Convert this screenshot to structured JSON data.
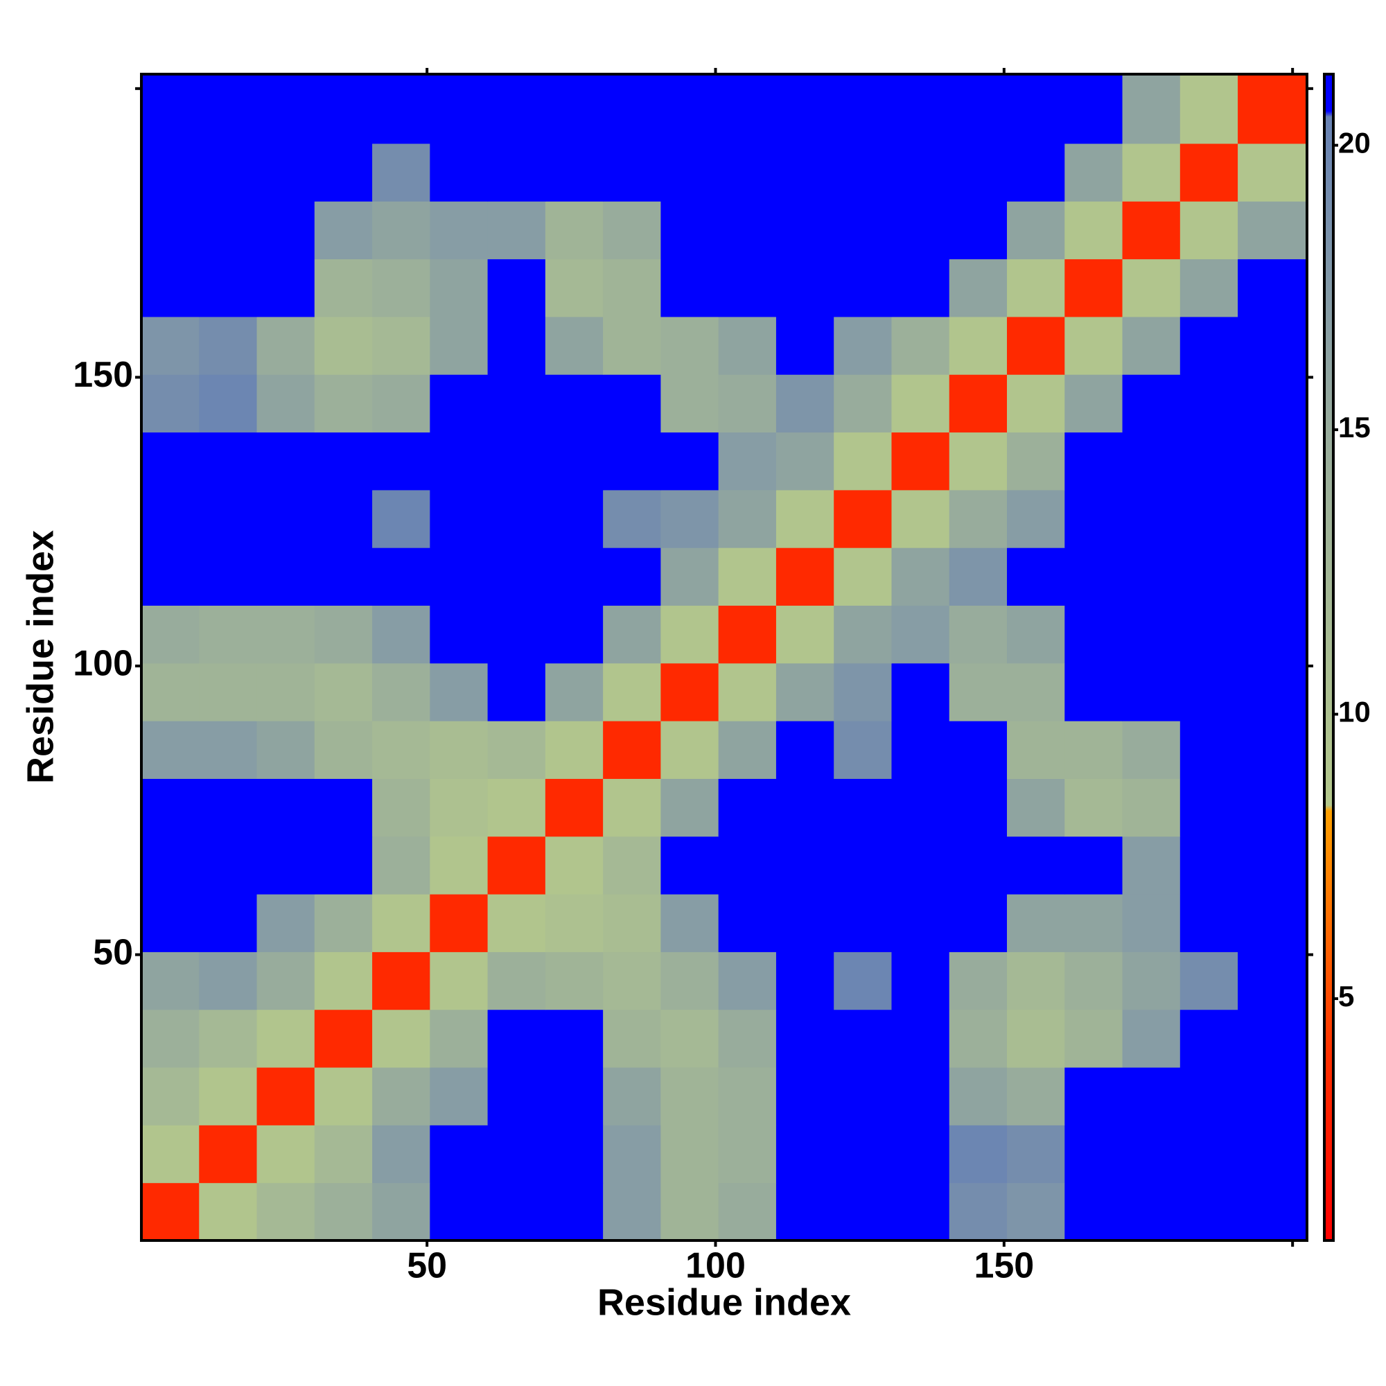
{
  "chart_data": {
    "type": "heatmap",
    "x_label": "Residue index",
    "y_label": "Residue index",
    "bins": [
      0.5,
      10.5,
      20.5,
      30.5,
      40.5,
      50.5,
      60.5,
      70.5,
      80.5,
      90.5,
      100.5,
      110.5,
      120.5,
      130.5,
      140.5,
      150.5,
      160.5,
      170.5,
      180.5,
      190.5,
      202.5
    ],
    "xlim": [
      0.5,
      202.5
    ],
    "ylim": [
      0.5,
      202.5
    ],
    "xticks": [
      50,
      100,
      150
    ],
    "yticks": [
      50,
      100,
      150
    ],
    "xticks_unlabeled": [
      200
    ],
    "yticks_unlabeled": [
      200
    ],
    "clim": [
      0.75,
      21.25
    ],
    "cticks": [
      5,
      10,
      15,
      20
    ],
    "colorscale": [
      [
        0.75,
        "#ff0000"
      ],
      [
        4,
        "#ff3000"
      ],
      [
        8.3,
        "#ffa000"
      ],
      [
        8.4,
        "#b4c88c"
      ],
      [
        15,
        "#98ac9c"
      ],
      [
        20.5,
        "#6882b4"
      ],
      [
        20.6,
        "#0000ff"
      ],
      [
        21.25,
        "#0000ff"
      ]
    ],
    "values": [
      [
        3.5,
        9,
        12,
        14,
        16,
        21,
        21,
        21,
        17,
        13,
        15,
        21,
        21,
        21,
        19,
        18,
        21,
        21,
        21,
        21
      ],
      [
        9,
        3.5,
        9,
        12,
        17,
        21,
        21,
        21,
        17,
        13,
        14,
        21,
        21,
        21,
        20,
        19,
        21,
        21,
        21,
        21
      ],
      [
        12,
        9,
        3.5,
        9,
        15,
        17,
        21,
        21,
        16,
        13,
        14,
        21,
        21,
        21,
        16,
        15,
        21,
        21,
        21,
        21
      ],
      [
        14,
        12,
        9,
        3.5,
        9,
        14,
        21,
        21,
        13,
        12,
        15,
        21,
        21,
        21,
        14,
        11,
        13,
        17,
        21,
        21
      ],
      [
        16,
        17,
        15,
        9,
        3.5,
        9,
        14,
        13,
        12,
        14,
        17,
        21,
        20,
        21,
        15,
        12,
        14,
        16,
        19,
        21
      ],
      [
        21,
        21,
        17,
        14,
        9,
        3.5,
        9,
        10,
        11,
        17,
        21,
        21,
        21,
        21,
        21,
        16,
        16,
        17,
        21,
        21
      ],
      [
        21,
        21,
        21,
        21,
        14,
        9,
        3.5,
        9,
        12,
        21,
        21,
        21,
        21,
        21,
        21,
        21,
        21,
        17,
        21,
        21
      ],
      [
        21,
        21,
        21,
        21,
        13,
        10,
        9,
        3.5,
        9,
        16,
        21,
        21,
        21,
        21,
        21,
        16,
        12,
        13,
        21,
        21
      ],
      [
        17,
        17,
        16,
        13,
        12,
        11,
        12,
        9,
        3.5,
        9,
        16,
        21,
        19,
        21,
        21,
        13,
        13,
        15,
        21,
        21
      ],
      [
        13,
        13,
        13,
        12,
        14,
        17,
        21,
        16,
        9,
        3.5,
        9,
        16,
        18,
        21,
        14,
        14,
        21,
        21,
        21,
        21
      ],
      [
        15,
        14,
        14,
        15,
        17,
        21,
        21,
        21,
        16,
        9,
        3.5,
        9,
        16,
        17,
        15,
        16,
        21,
        21,
        21,
        21
      ],
      [
        21,
        21,
        21,
        21,
        21,
        21,
        21,
        21,
        21,
        16,
        9,
        3.5,
        9,
        16,
        18,
        21,
        21,
        21,
        21,
        21
      ],
      [
        21,
        21,
        21,
        21,
        20,
        21,
        21,
        21,
        19,
        18,
        16,
        9,
        3.5,
        9,
        15,
        17,
        21,
        21,
        21,
        21
      ],
      [
        21,
        21,
        21,
        21,
        21,
        21,
        21,
        21,
        21,
        21,
        17,
        16,
        9,
        3.5,
        9,
        14,
        21,
        21,
        21,
        21
      ],
      [
        19,
        20,
        16,
        14,
        15,
        21,
        21,
        21,
        21,
        14,
        15,
        18,
        15,
        9,
        3.5,
        9,
        16,
        21,
        21,
        21
      ],
      [
        18,
        19,
        15,
        11,
        12,
        16,
        21,
        16,
        13,
        14,
        16,
        21,
        17,
        14,
        9,
        3.5,
        9,
        16,
        21,
        21
      ],
      [
        21,
        21,
        21,
        13,
        14,
        16,
        21,
        12,
        13,
        21,
        21,
        21,
        21,
        21,
        16,
        9,
        3.5,
        9,
        16,
        21
      ],
      [
        21,
        21,
        21,
        17,
        16,
        17,
        17,
        13,
        15,
        21,
        21,
        21,
        21,
        21,
        21,
        16,
        9,
        3.5,
        9,
        16
      ],
      [
        21,
        21,
        21,
        21,
        19,
        21,
        21,
        21,
        21,
        21,
        21,
        21,
        21,
        21,
        21,
        21,
        16,
        9,
        3.5,
        9
      ],
      [
        21,
        21,
        21,
        21,
        21,
        21,
        21,
        21,
        21,
        21,
        21,
        21,
        21,
        21,
        21,
        21,
        21,
        16,
        9,
        3.5
      ]
    ]
  }
}
